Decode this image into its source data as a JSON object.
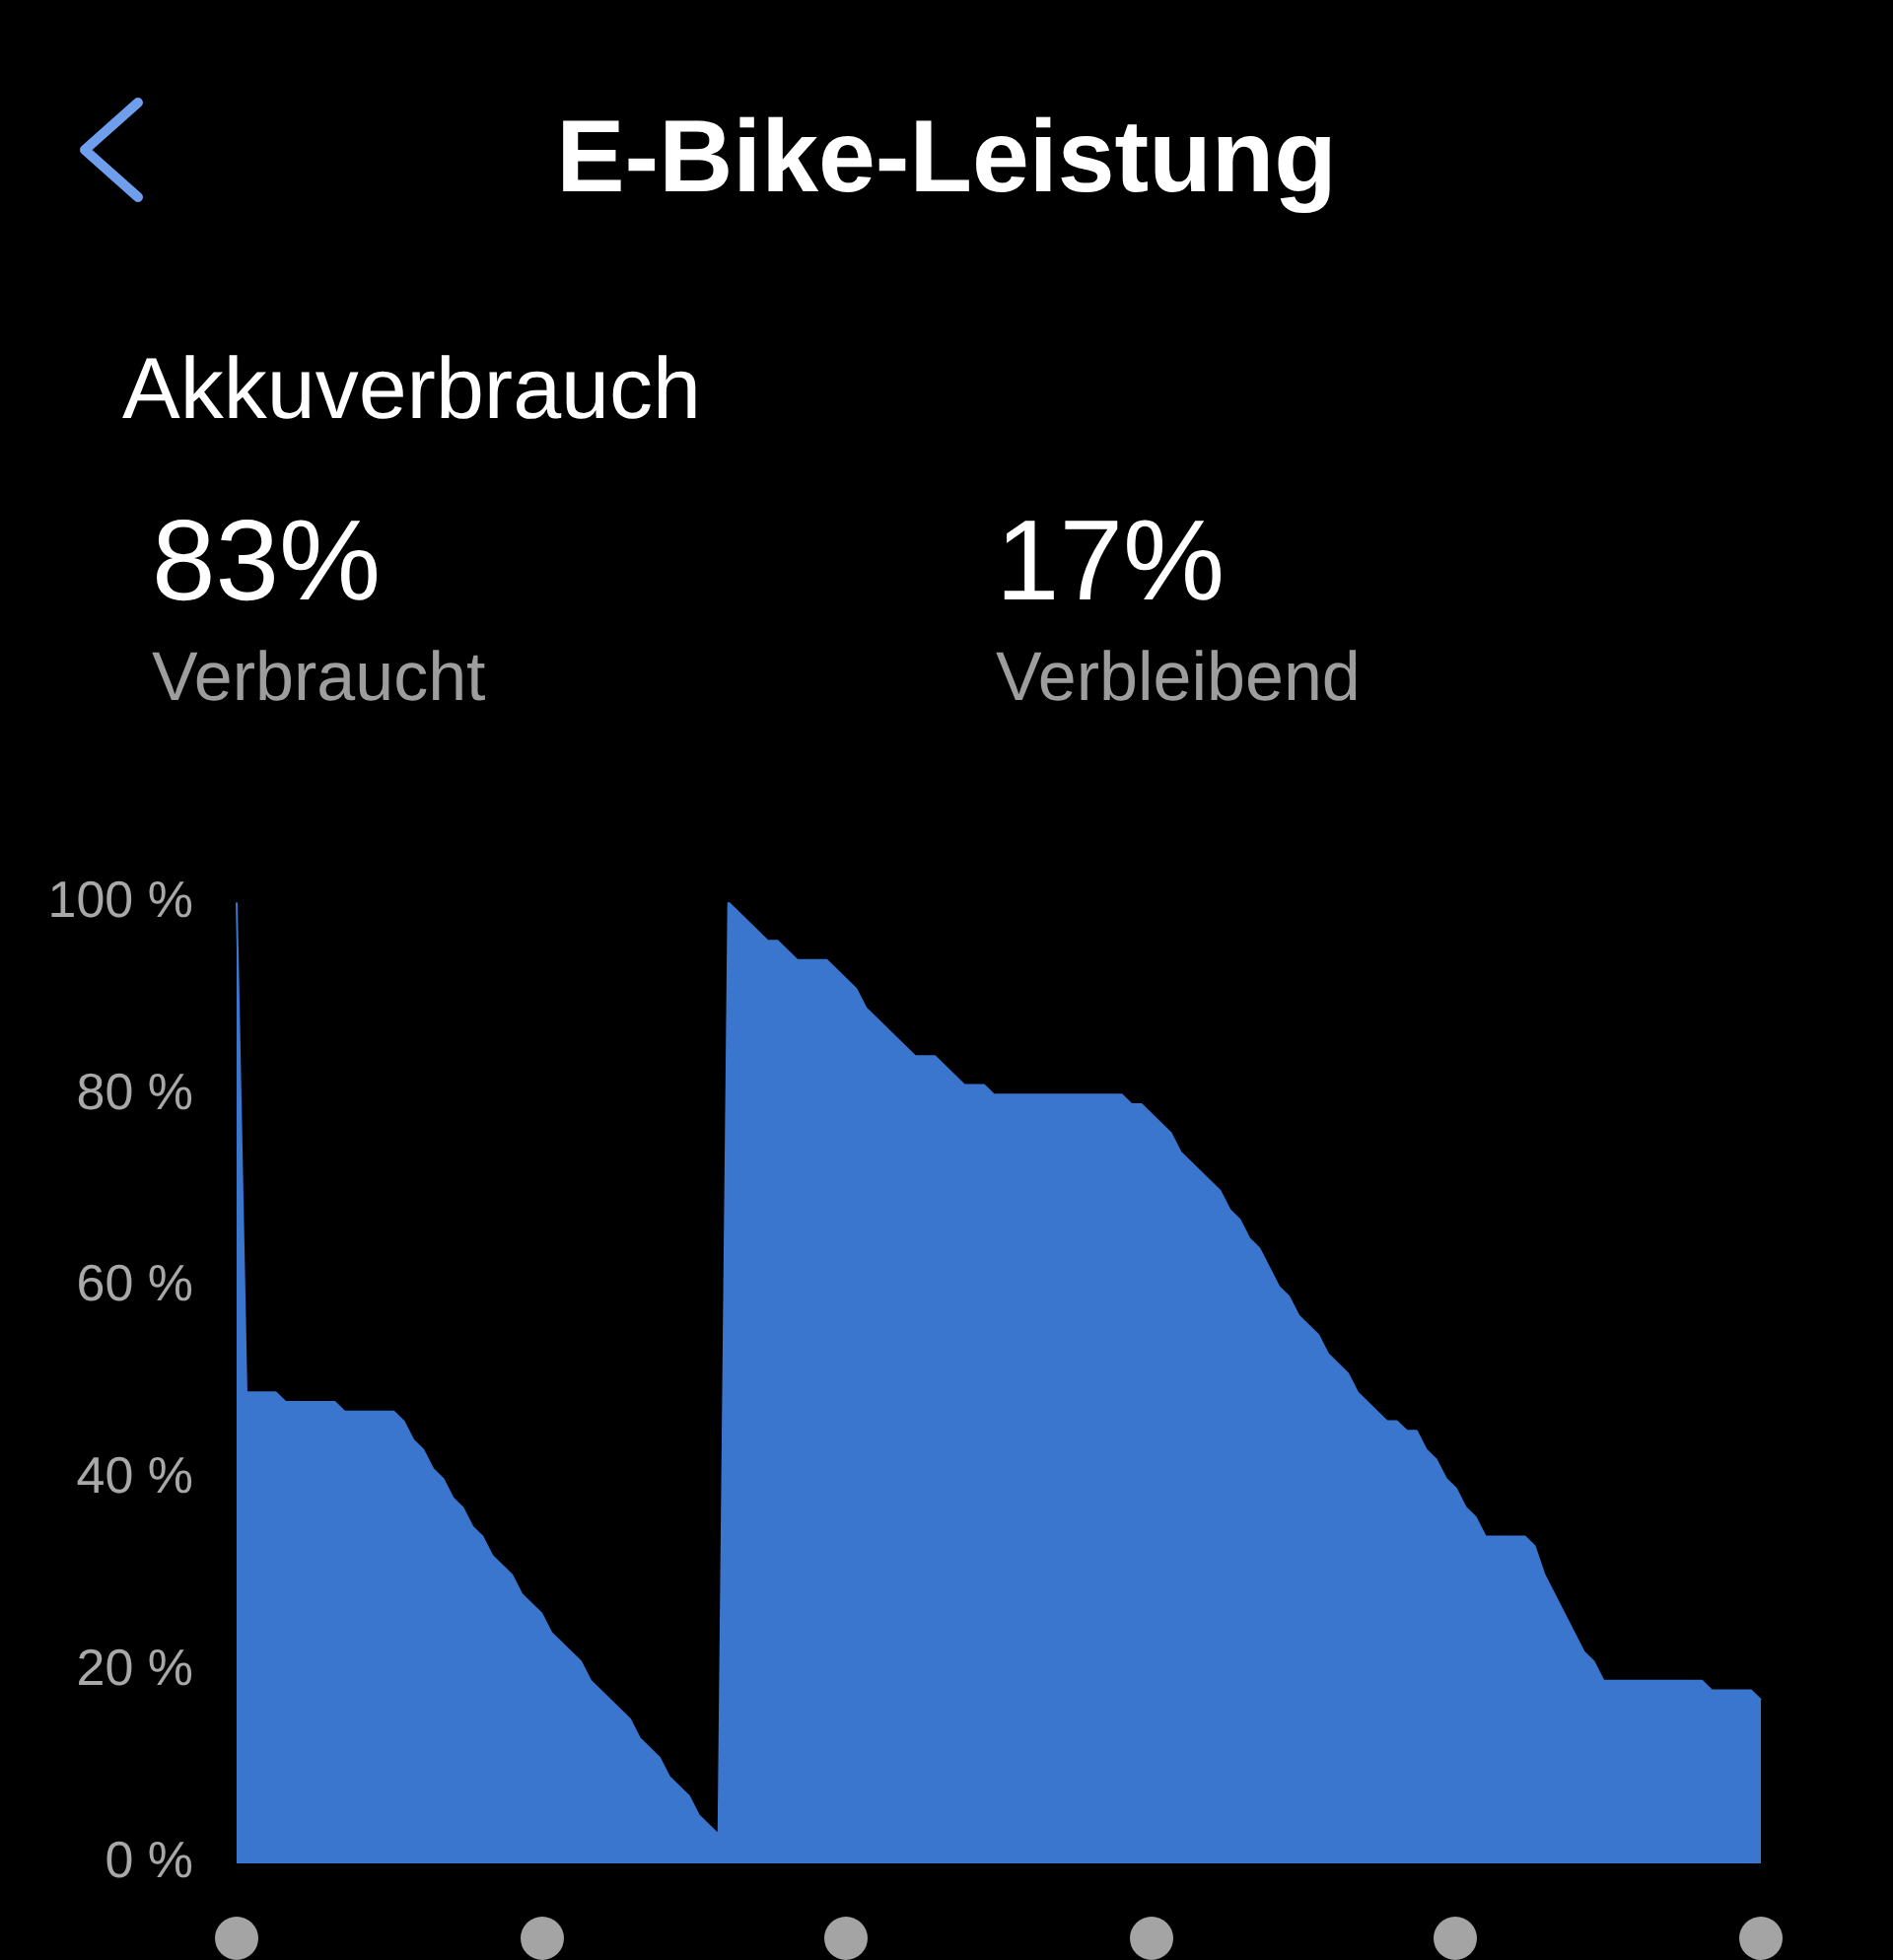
{
  "chart_data": {
    "type": "area",
    "title": "E-Bike-Leistung",
    "subtitle": "Akkuverbrauch",
    "annotations": [
      "83%",
      "Verbraucht",
      "17%",
      "Verbleibend"
    ],
    "categories": [
      null,
      null,
      null,
      null,
      null,
      null,
      null,
      null,
      null,
      null,
      null,
      null,
      null,
      null,
      null,
      null,
      null,
      null,
      null,
      null,
      null,
      null,
      null,
      null,
      null,
      null,
      null,
      null,
      null,
      null,
      null,
      null,
      null,
      null,
      null,
      null,
      null,
      null,
      null,
      null,
      null,
      null,
      null,
      null,
      null,
      null,
      null,
      null,
      null,
      null,
      null,
      null,
      null,
      null,
      null,
      null,
      null,
      null,
      null,
      null,
      null,
      null,
      null,
      null,
      null,
      null,
      null,
      null,
      null,
      null,
      null,
      null,
      null,
      null,
      null,
      null,
      null,
      null,
      null,
      null,
      null,
      null,
      null,
      null,
      null,
      null,
      null,
      null,
      null,
      null,
      null,
      null,
      null,
      null,
      null,
      null,
      null,
      null,
      null,
      null,
      null,
      null,
      null,
      null,
      null,
      null,
      null,
      null,
      null,
      null,
      null,
      null,
      null,
      null,
      null,
      null,
      null,
      null,
      null,
      null,
      null,
      null,
      null,
      null,
      null,
      null,
      null,
      null,
      null,
      null,
      null,
      null,
      null,
      null,
      null,
      null,
      null,
      null,
      null,
      null,
      null,
      null,
      null,
      null,
      null,
      null,
      null,
      null,
      null,
      null,
      null,
      null,
      null,
      null,
      null,
      null
    ],
    "values": [
      100,
      49,
      49,
      49,
      49,
      48,
      48,
      48,
      48,
      48,
      48,
      47,
      47,
      47,
      47,
      47,
      47,
      46,
      44,
      43,
      41,
      40,
      38,
      37,
      35,
      34,
      32,
      31,
      30,
      28,
      27,
      26,
      24,
      23,
      22,
      21,
      19,
      18,
      17,
      16,
      15,
      13,
      12,
      11,
      9,
      8,
      7,
      5,
      4,
      3,
      100,
      99,
      98,
      97,
      96,
      96,
      95,
      94,
      94,
      94,
      94,
      93,
      92,
      91,
      89,
      88,
      87,
      86,
      85,
      84,
      84,
      84,
      83,
      82,
      81,
      81,
      81,
      80,
      80,
      80,
      80,
      80,
      80,
      80,
      80,
      80,
      80,
      80,
      80,
      80,
      80,
      79,
      79,
      78,
      77,
      76,
      74,
      73,
      72,
      71,
      70,
      68,
      67,
      65,
      64,
      62,
      60,
      59,
      57,
      56,
      55,
      53,
      52,
      51,
      49,
      48,
      47,
      46,
      46,
      45,
      45,
      43,
      42,
      40,
      39,
      37,
      36,
      34,
      34,
      34,
      34,
      34,
      33,
      30,
      28,
      26,
      24,
      22,
      21,
      19,
      19,
      19,
      19,
      19,
      19,
      19,
      19,
      19,
      19,
      19,
      18,
      18,
      18,
      18,
      18,
      17
    ],
    "color": "#3a76cd",
    "ylim": [
      0,
      100
    ],
    "yticks": [
      {
        "value": 0,
        "label": "0 %"
      },
      {
        "value": 20,
        "label": "20 %"
      },
      {
        "value": 40,
        "label": "40 %"
      },
      {
        "value": 60,
        "label": "60 %"
      },
      {
        "value": 80,
        "label": "80 %"
      },
      {
        "value": 100,
        "label": "100 %"
      }
    ],
    "tick_labels": "y"
  }
}
